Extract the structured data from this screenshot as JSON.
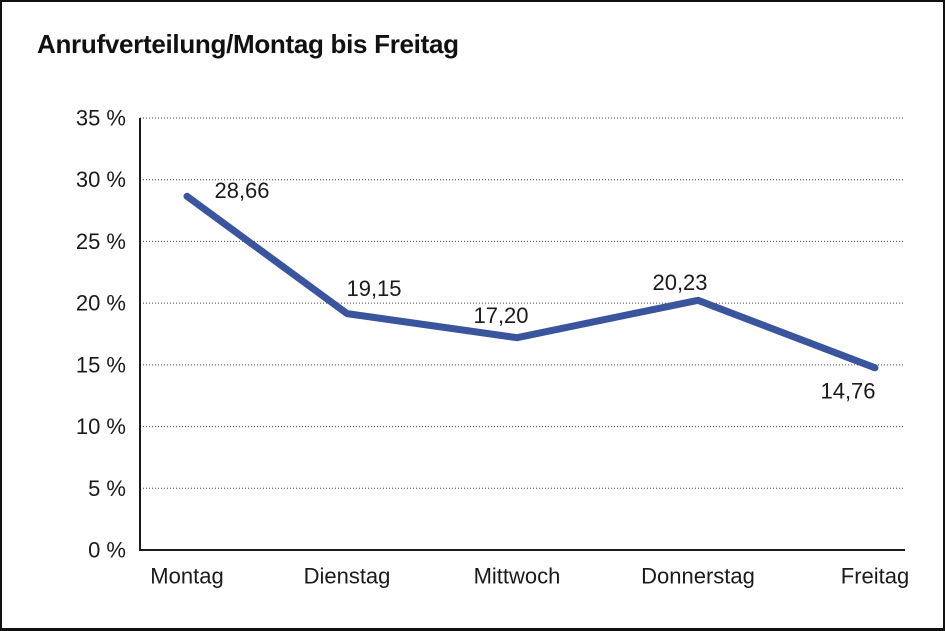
{
  "chart_data": {
    "type": "line",
    "title": "Anrufverteilung/Montag bis Freitag",
    "categories": [
      "Montag",
      "Dienstag",
      "Mittwoch",
      "Donnerstag",
      "Freitag"
    ],
    "series": [
      {
        "name": "Anrufverteilung",
        "values": [
          28.66,
          19.15,
          17.2,
          20.23,
          14.76
        ]
      }
    ],
    "point_labels": [
      "28,66",
      "19,15",
      "17,20",
      "20,23",
      "14,76"
    ],
    "yticks": [
      {
        "value": 35,
        "label": "35 %"
      },
      {
        "value": 30,
        "label": "30 %"
      },
      {
        "value": 25,
        "label": "25 %"
      },
      {
        "value": 20,
        "label": "20 %"
      },
      {
        "value": 15,
        "label": "15 %"
      },
      {
        "value": 10,
        "label": "10 %"
      },
      {
        "value": 5,
        "label": "5 %"
      },
      {
        "value": 0,
        "label": "0 %"
      }
    ],
    "ylim": [
      0,
      35
    ],
    "xlabel": "",
    "ylabel": "",
    "grid": "horizontal-dotted",
    "legend": "none",
    "colors": {
      "line": "#3a559e",
      "axis": "#1a1a1a",
      "text": "#1a1a1a",
      "gridline": "#444444",
      "background": "#ffffff",
      "frame_border": "#111111"
    }
  }
}
